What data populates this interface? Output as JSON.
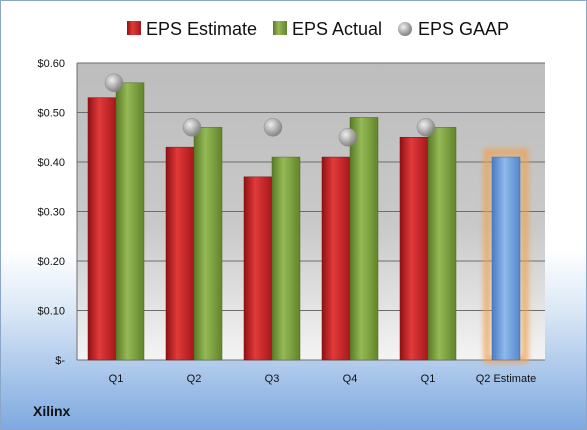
{
  "company": "Xilinx",
  "chart_data": {
    "type": "bar",
    "categories": [
      "Q1",
      "Q2",
      "Q3",
      "Q4",
      "Q1",
      "Q2 Estimate"
    ],
    "series": [
      {
        "name": "EPS Estimate",
        "type": "bar",
        "color": "#c8262a",
        "values": [
          0.53,
          0.43,
          0.37,
          0.41,
          0.45,
          null
        ]
      },
      {
        "name": "EPS Actual",
        "type": "bar",
        "color": "#7fa040",
        "values": [
          0.56,
          0.47,
          0.41,
          0.49,
          0.47,
          0.41
        ]
      },
      {
        "name": "EPS GAAP",
        "type": "marker",
        "color": "#a0a0a0",
        "values": [
          0.56,
          0.47,
          0.47,
          0.45,
          0.47,
          null
        ]
      }
    ],
    "highlight": {
      "category": "Q2 Estimate",
      "value": 0.41,
      "color": "#6f9ed8",
      "glow": "#f0a050"
    },
    "y_ticks": [
      "$-",
      "$0.10",
      "$0.20",
      "$0.30",
      "$0.40",
      "$0.50",
      "$0.60"
    ],
    "y_tick_values": [
      0,
      0.1,
      0.2,
      0.3,
      0.4,
      0.5,
      0.6
    ],
    "ylim": [
      0,
      0.6
    ],
    "grid": true,
    "legend_position": "top",
    "title": "",
    "xlabel": "",
    "ylabel": ""
  }
}
